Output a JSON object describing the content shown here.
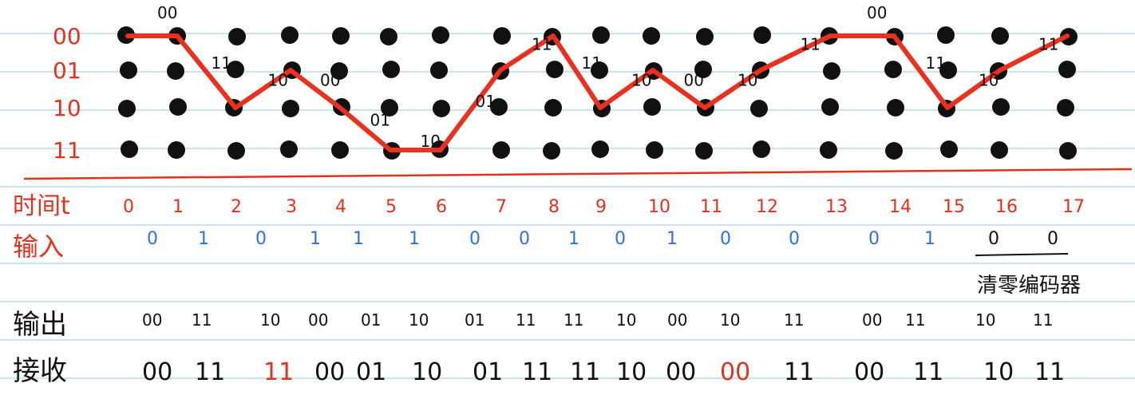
{
  "colors": {
    "paper": "#ffffff",
    "ruled_line": "#b9dcef",
    "ink_red": "#e3311e",
    "ink_blue": "#2f6fe0",
    "ink_black": "#111111",
    "path_red": "#e8321f"
  },
  "states": [
    "00",
    "01",
    "10",
    "11"
  ],
  "time_label": "时间t",
  "time_values": [
    "0",
    "1",
    "2",
    "3",
    "4",
    "5",
    "6",
    "7",
    "8",
    "9",
    "10",
    "11",
    "12",
    "13",
    "14",
    "15",
    "16",
    "17"
  ],
  "input_label": "输入",
  "input_values": [
    "0",
    "1",
    "0",
    "1",
    "1",
    "1",
    "0",
    "0",
    "1",
    "0",
    "1",
    "0",
    "0",
    "0",
    "1",
    "0",
    "0"
  ],
  "flush_note": "清零编码器",
  "output_label": "输出",
  "output_values": [
    "00",
    "11",
    "10",
    "00",
    "01",
    "10",
    "01",
    "11",
    "11",
    "10",
    "00",
    "10",
    "11",
    "00",
    "11",
    "10",
    "11"
  ],
  "receive_label": "接收",
  "receive_values": [
    "00",
    "11",
    "11",
    "00",
    "01",
    "10",
    "01",
    "11",
    "11",
    "10",
    "00",
    "00",
    "11",
    "00",
    "11",
    "10",
    "11"
  ],
  "receive_error_indices": [
    2,
    11
  ],
  "survivor_path_states": [
    "00",
    "00",
    "10",
    "01",
    "10",
    "11",
    "11",
    "01",
    "00",
    "10",
    "01",
    "10",
    "01",
    "00",
    "00",
    "10",
    "01",
    "00"
  ],
  "branch_labels": [
    "00",
    "11",
    "10",
    "00",
    "01",
    "10",
    "01",
    "11",
    "11",
    "10",
    "00",
    "10",
    "11",
    "00",
    "11",
    "10",
    "11"
  ]
}
